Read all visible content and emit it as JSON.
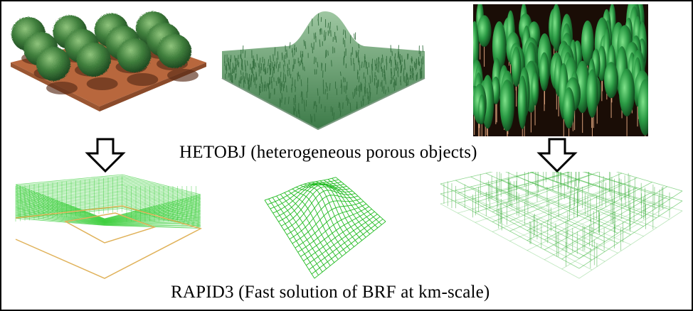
{
  "captions": {
    "hetobj": "HETOBJ (heterogeneous porous objects)",
    "rapid3": "RAPID3 (Fast solution of BRF at km-scale)"
  },
  "panels": [
    {
      "id": "shrub-canopy-render",
      "icon": "shrubs-on-soil"
    },
    {
      "id": "hill-grass-render",
      "icon": "grass-hill"
    },
    {
      "id": "forest-render",
      "icon": "forest-ellipsoids"
    },
    {
      "id": "shrub-canopy-wireframe",
      "icon": "wireframe-box"
    },
    {
      "id": "hill-wireframe",
      "icon": "wireframe-hill"
    },
    {
      "id": "forest-wireframe",
      "icon": "wireframe-grid"
    }
  ],
  "colors": {
    "soil": "#b8673d",
    "shrub": "#3f7e3c",
    "grass": "#5f9a66",
    "forest_bg": "#1a0d06",
    "wire": "#33cc33",
    "outline": "#e0b25a"
  }
}
